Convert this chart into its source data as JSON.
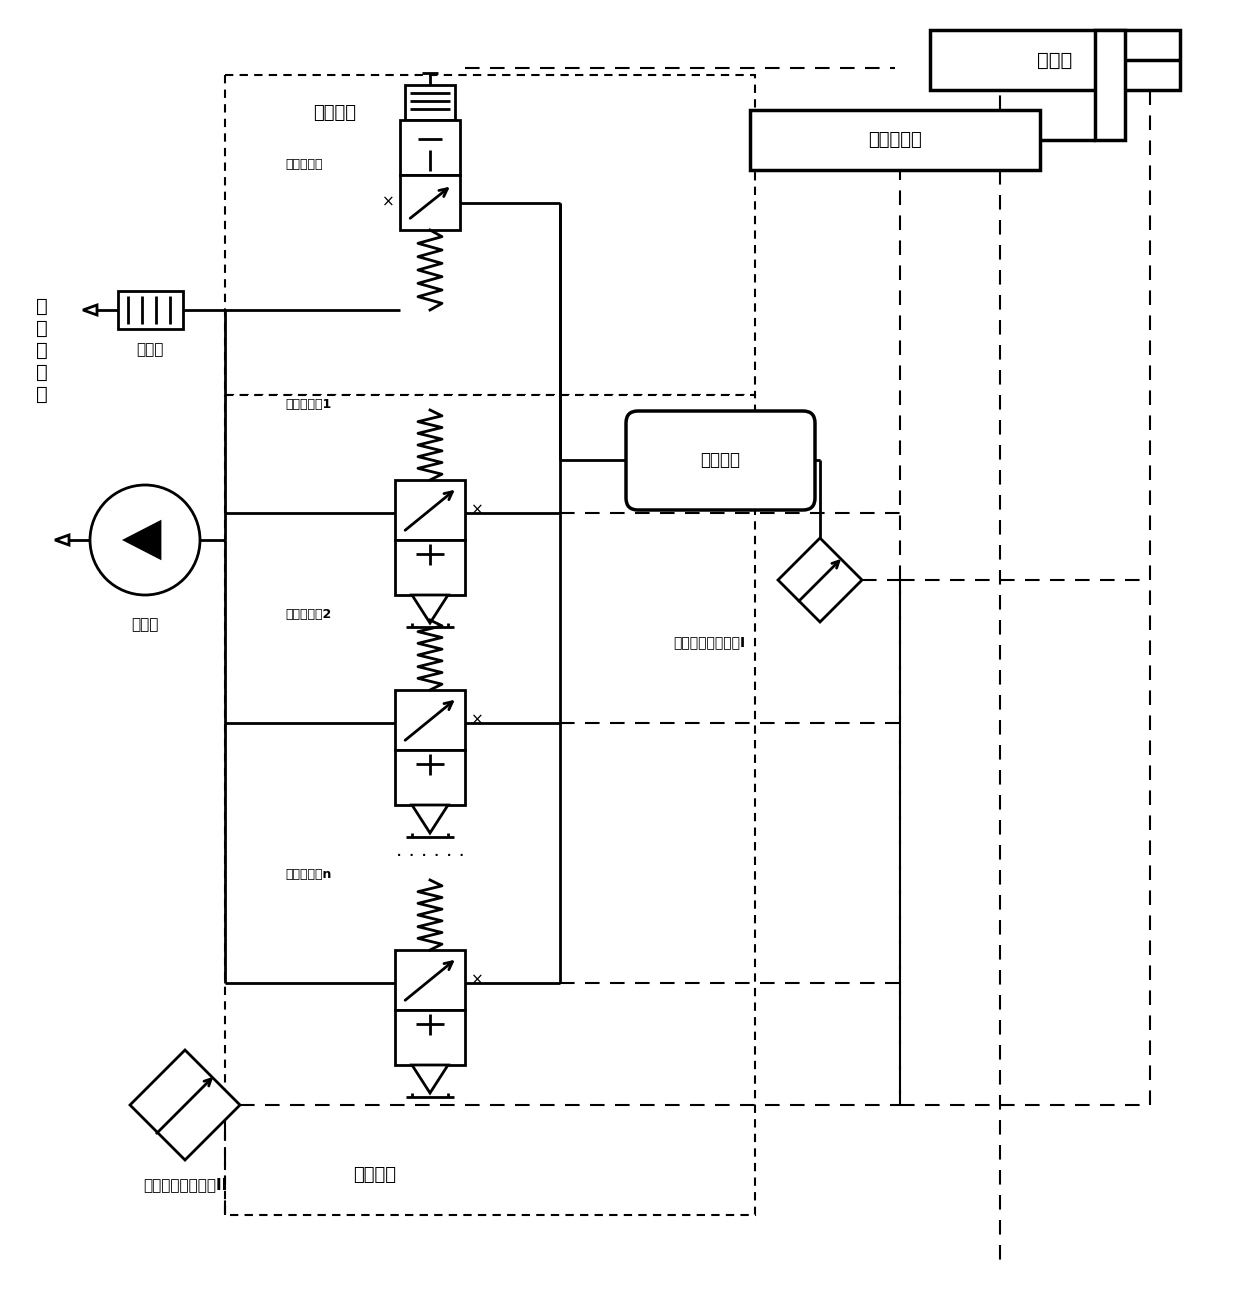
{
  "bg_color": "#ffffff",
  "line_color": "#000000",
  "labels": {
    "env_pressure": "环\n境\n大\n气\n压",
    "silencer": "消音器",
    "vacuum_pump": "真空泵",
    "charge_unit": "充气单元",
    "exhaust_unit": "抽气单元",
    "hsv_charge": "高速开关阀",
    "hsv1": "高速开关阀1",
    "hsv2": "高速开关阀2",
    "hsvn": "高速开关阀n",
    "controlled_cavity": "被控容腔",
    "sensor1": "高精度压力传感器I",
    "sensor2": "高精度压力传感器II",
    "relay": "固态继电器",
    "controller": "控制器",
    "dots": "· · · · · ·"
  },
  "figsize": [
    12.4,
    13.05
  ],
  "dpi": 100
}
